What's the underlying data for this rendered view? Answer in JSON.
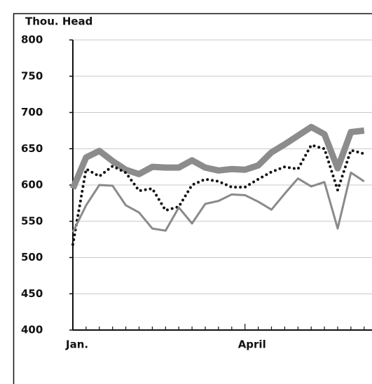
{
  "chart_data": {
    "type": "line",
    "y_label": "Thou. Head",
    "categories": [
      "Jan.",
      null,
      null,
      null,
      null,
      null,
      null,
      null,
      null,
      null,
      null,
      null,
      null,
      "April",
      null,
      null,
      null,
      null,
      null,
      null,
      null,
      null,
      null
    ],
    "series": [
      {
        "color": "#8c8c8c",
        "linewidth": 9,
        "linestyle": "solid",
        "values": [
          595,
          638,
          647,
          633,
          621,
          615,
          625,
          624,
          624,
          634,
          624,
          620,
          622,
          621,
          627,
          645,
          656,
          668,
          680,
          670,
          623,
          673,
          675
        ]
      },
      {
        "color": "#111111",
        "linewidth": 4,
        "linestyle": "dotted",
        "values": [
          518,
          622,
          612,
          626,
          617,
          592,
          595,
          565,
          570,
          600,
          608,
          605,
          597,
          597,
          608,
          618,
          625,
          622,
          655,
          650,
          593,
          648,
          643
        ]
      },
      {
        "color": "#8a8a8a",
        "linewidth": 3,
        "linestyle": "solid",
        "values": [
          535,
          572,
          600,
          599,
          572,
          562,
          540,
          537,
          569,
          547,
          574,
          578,
          587,
          586,
          577,
          566,
          588,
          609,
          598,
          604,
          540,
          617,
          605
        ]
      }
    ],
    "ylim": [
      400,
      800
    ],
    "yticks": [
      400,
      450,
      500,
      550,
      600,
      650,
      700,
      750,
      800
    ],
    "grid": true
  }
}
